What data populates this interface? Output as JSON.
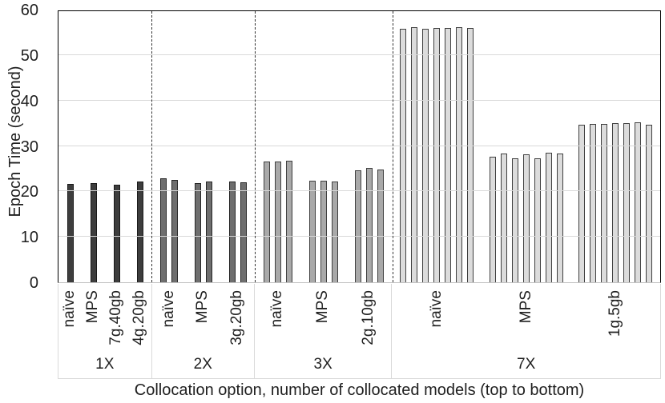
{
  "chart_data": {
    "type": "bar",
    "title": "",
    "ylabel": "Epoch Time (second)",
    "xlabel": "Collocation option, number of collocated models (top to bottom)",
    "ylim": [
      0,
      60
    ],
    "yticks": [
      0,
      10,
      20,
      30,
      40,
      50,
      60
    ],
    "grid": "horizontal gridlines at each y tick",
    "legend": "none",
    "group_dividers": "dashed vertical lines between groups",
    "groups": [
      {
        "label": "1X",
        "fill": "#3d3d3d",
        "border": "#1a1a1a",
        "options": [
          {
            "label": "naïve",
            "values": [
              21.7
            ]
          },
          {
            "label": "MPS",
            "values": [
              21.8
            ]
          },
          {
            "label": "7g.40gb",
            "values": [
              21.4
            ]
          },
          {
            "label": "4g.20gb",
            "values": [
              22.1
            ]
          }
        ]
      },
      {
        "label": "2X",
        "fill": "#6e6e6e",
        "border": "#262626",
        "options": [
          {
            "label": "naïve",
            "values": [
              22.8,
              22.5
            ]
          },
          {
            "label": "MPS",
            "values": [
              21.8,
              22.2
            ]
          },
          {
            "label": "3g.20gb",
            "values": [
              22.2,
              22.0
            ]
          }
        ]
      },
      {
        "label": "3X",
        "fill": "#a9a9a9",
        "border": "#3f3f3f",
        "options": [
          {
            "label": "naïve",
            "values": [
              26.6,
              26.5,
              26.8
            ]
          },
          {
            "label": "MPS",
            "values": [
              22.3,
              22.4,
              22.1
            ]
          },
          {
            "label": "2g.10gb",
            "values": [
              24.6,
              25.1,
              24.9
            ]
          }
        ]
      },
      {
        "label": "7X",
        "fill": "#dcdcdc",
        "border": "#3f3f3f",
        "options": [
          {
            "label": "naïve",
            "values": [
              55.8,
              56.2,
              55.8,
              56.0,
              55.9,
              56.2,
              56.0
            ]
          },
          {
            "label": "MPS",
            "values": [
              27.7,
              28.4,
              27.2,
              28.1,
              27.3,
              28.5,
              28.3
            ]
          },
          {
            "label": "1g.5gb",
            "values": [
              34.7,
              34.8,
              34.9,
              35.0,
              35.1,
              35.2,
              34.6
            ]
          }
        ]
      }
    ],
    "colors": {
      "gridline": "#d9d9d9",
      "frame": "#000000",
      "x_axis_line": "#c2c2c2",
      "divider": "#333333",
      "label_band_lines": "#d9d9d9",
      "text": "#1f1f1f",
      "background": "#ffffff"
    }
  }
}
